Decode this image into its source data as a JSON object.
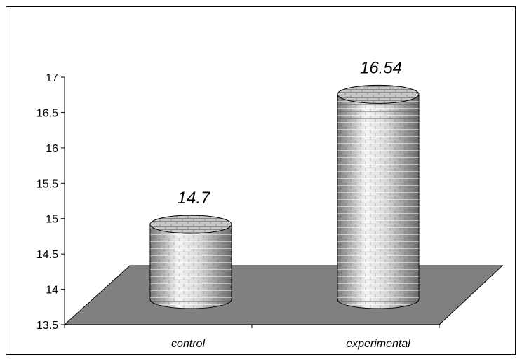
{
  "chart_data": {
    "type": "bar",
    "style": "3d-cylinder",
    "categories": [
      "control",
      "experimental"
    ],
    "values": [
      14.7,
      16.54
    ],
    "data_labels": [
      "14.7",
      "16.54"
    ],
    "title": "",
    "xlabel": "",
    "ylabel": "",
    "ylim": [
      13.5,
      17
    ],
    "yticks": [
      "13.5",
      "14",
      "14.5",
      "15",
      "15.5",
      "16",
      "16.5",
      "17"
    ],
    "grid": false,
    "legend": "none",
    "colors": {
      "floor": "#808080",
      "bar_light": "#f2f2f2",
      "bar_mid": "#bdbdbd",
      "bar_dark": "#6e6e6e",
      "axis": "#000000"
    }
  }
}
